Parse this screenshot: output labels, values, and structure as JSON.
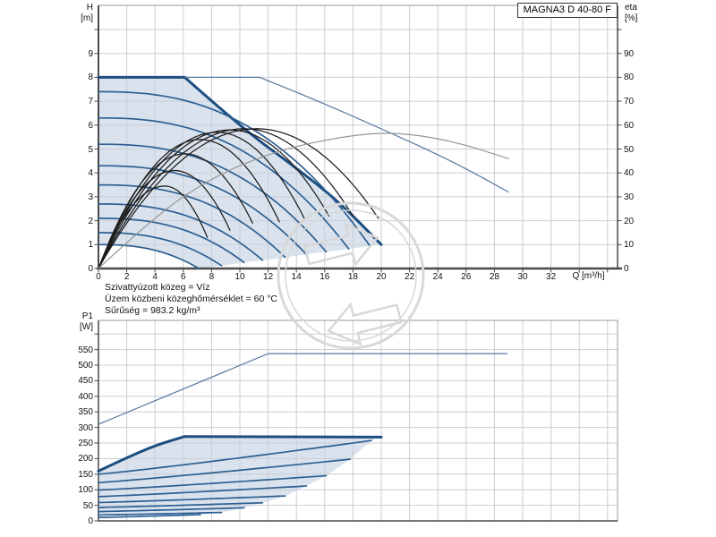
{
  "header": {
    "model_label": "MAGNA3 D 40-80 F"
  },
  "notes": [
    "Szivattyúzott közeg = Víz",
    "Üzem közbeni közeghőmérséklet = 60 °C",
    "Sűrűség = 983.2 kg/m³"
  ],
  "colors": {
    "curve_blue": "#2d5f92",
    "curve_blue_bold": "#1c4e80",
    "curve_blue_thin": "#56779e",
    "curve_black": "#1c1c1c",
    "curve_gray": "#979797",
    "envelope_fill": "#dae3ed",
    "grid": "#c9ced6",
    "axis": "#4a4a4a",
    "frame": "#999999",
    "watermark": "#d8d8d8"
  },
  "chart_data": [
    {
      "type": "line",
      "title": "MAGNA3 D 40-80 F",
      "xlabel": "Q [m³/h]",
      "ylabel_left_1": "H",
      "ylabel_left_2": "[m]",
      "ylabel_right_1": "eta",
      "ylabel_right_2": "[%]",
      "xlim": [
        0,
        36.7
      ],
      "ylim_left": [
        0,
        10
      ],
      "ylim_right": [
        0,
        100
      ],
      "x_ticks": [
        0,
        2,
        4,
        6,
        8,
        10,
        12,
        14,
        16,
        18,
        20,
        22,
        24,
        26,
        28,
        30,
        32
      ],
      "y_ticks_left": [
        0,
        1,
        2,
        3,
        4,
        5,
        6,
        7,
        8,
        9
      ],
      "y_ticks_right": [
        0,
        10,
        20,
        30,
        40,
        50,
        60,
        70,
        80,
        90
      ],
      "grid": "on",
      "envelope": [
        [
          0,
          1.0
        ],
        [
          2,
          0.96
        ],
        [
          3.55,
          0.82
        ],
        [
          5.3,
          0.51
        ],
        [
          6.4,
          0.23
        ],
        [
          7.1,
          0
        ],
        [
          8.7,
          0.12
        ],
        [
          10.3,
          0.25
        ],
        [
          11.6,
          0.35
        ],
        [
          13.2,
          0.47
        ],
        [
          14.7,
          0.59
        ],
        [
          16.1,
          0.7
        ],
        [
          17.7,
          0.82
        ],
        [
          19.2,
          0.94
        ],
        [
          20,
          1.0
        ],
        [
          17,
          2.8
        ],
        [
          14,
          4.2
        ],
        [
          10.1,
          5.9
        ],
        [
          6.1,
          8
        ],
        [
          0,
          8
        ]
      ],
      "series": [
        {
          "name": "qh-max-single-flat",
          "axis": "left",
          "style": "blue-bold",
          "draw": "line",
          "points": [
            [
              0,
              8
            ],
            [
              6.1,
              8
            ]
          ]
        },
        {
          "name": "qh-max-single-desc",
          "axis": "left",
          "style": "blue-bold",
          "draw": "smooth",
          "points": [
            [
              6.1,
              8
            ],
            [
              10.1,
              5.9
            ],
            [
              14,
              4.2
            ],
            [
              17,
              2.8
            ],
            [
              20,
              1.0
            ]
          ]
        },
        {
          "name": "qh-max-parallel-flat",
          "axis": "left",
          "style": "blue-thin",
          "draw": "line",
          "points": [
            [
              6.1,
              8
            ],
            [
              11.4,
              8
            ]
          ]
        },
        {
          "name": "qh-max-parallel-desc",
          "axis": "left",
          "style": "blue-thin",
          "draw": "smooth",
          "points": [
            [
              11.4,
              8
            ],
            [
              15,
              7.15
            ],
            [
              20,
              5.85
            ],
            [
              25,
              4.5
            ],
            [
              29,
              3.2
            ]
          ]
        },
        {
          "name": "speed-curve-1",
          "axis": "left",
          "style": "blue",
          "draw": "pump",
          "h0": 7.4,
          "qe": 19.2,
          "he": 0.94,
          "exp": 2.5
        },
        {
          "name": "speed-curve-2",
          "axis": "left",
          "style": "blue",
          "draw": "pump",
          "h0": 6.3,
          "qe": 17.7,
          "he": 0.82,
          "exp": 2.5
        },
        {
          "name": "speed-curve-3",
          "axis": "left",
          "style": "blue",
          "draw": "pump",
          "h0": 5.2,
          "qe": 16.1,
          "he": 0.7,
          "exp": 2.5
        },
        {
          "name": "speed-curve-4",
          "axis": "left",
          "style": "blue",
          "draw": "pump",
          "h0": 4.3,
          "qe": 14.7,
          "he": 0.59,
          "exp": 2.5
        },
        {
          "name": "speed-curve-5",
          "axis": "left",
          "style": "blue",
          "draw": "pump",
          "h0": 3.5,
          "qe": 13.2,
          "he": 0.47,
          "exp": 2.5
        },
        {
          "name": "speed-curve-6",
          "axis": "left",
          "style": "blue",
          "draw": "pump",
          "h0": 2.7,
          "qe": 11.6,
          "he": 0.35,
          "exp": 2.5
        },
        {
          "name": "speed-curve-7",
          "axis": "left",
          "style": "blue",
          "draw": "pump",
          "h0": 2.1,
          "qe": 10.3,
          "he": 0.25,
          "exp": 2.5
        },
        {
          "name": "speed-curve-8",
          "axis": "left",
          "style": "blue",
          "draw": "pump",
          "h0": 1.5,
          "qe": 8.7,
          "he": 0.12,
          "exp": 2.5
        },
        {
          "name": "speed-curve-9",
          "axis": "left",
          "style": "blue",
          "draw": "pump",
          "h0": 1.0,
          "qe": 7.1,
          "he": 0.0,
          "exp": 2.5
        },
        {
          "name": "eta-curve-1",
          "axis": "right",
          "style": "black",
          "draw": "hill",
          "qp": 4.7,
          "ep": 34.5,
          "qe": 7.7,
          "ee": 13
        },
        {
          "name": "eta-curve-2",
          "axis": "right",
          "style": "black",
          "draw": "hill",
          "qp": 5.4,
          "ep": 41,
          "qe": 9.3,
          "ee": 16
        },
        {
          "name": "eta-curve-3",
          "axis": "right",
          "style": "black",
          "draw": "hill",
          "qp": 6.1,
          "ep": 48,
          "qe": 10.9,
          "ee": 19
        },
        {
          "name": "eta-curve-4",
          "axis": "right",
          "style": "black",
          "draw": "hill",
          "qp": 7.2,
          "ep": 54,
          "qe": 12.8,
          "ee": 19.5
        },
        {
          "name": "eta-curve-5",
          "axis": "right",
          "style": "black",
          "draw": "hill",
          "qp": 8.4,
          "ep": 57,
          "qe": 14.6,
          "ee": 20.5
        },
        {
          "name": "eta-curve-6",
          "axis": "right",
          "style": "black",
          "draw": "hill",
          "qp": 9.3,
          "ep": 58,
          "qe": 16.3,
          "ee": 22
        },
        {
          "name": "eta-curve-7",
          "axis": "right",
          "style": "black",
          "draw": "hill",
          "qp": 10.3,
          "ep": 58.5,
          "qe": 18.0,
          "ee": 22
        },
        {
          "name": "eta-curve-8",
          "axis": "right",
          "style": "black",
          "draw": "hill",
          "qp": 11.2,
          "ep": 58.5,
          "qe": 19.8,
          "ee": 21
        },
        {
          "name": "eta-parallel",
          "axis": "right",
          "style": "gray",
          "draw": "smooth",
          "points": [
            [
              0,
              0
            ],
            [
              4,
              22
            ],
            [
              8,
              38
            ],
            [
              12,
              48
            ],
            [
              16,
              54
            ],
            [
              20.5,
              57.5
            ],
            [
              25,
              53.5
            ],
            [
              29,
              46
            ]
          ]
        }
      ]
    },
    {
      "type": "line",
      "title": "P1 power input",
      "xlabel": "",
      "ylabel_1": "P1",
      "ylabel_2": "[W]",
      "xlim": [
        0,
        36.7
      ],
      "ylim": [
        0,
        600
      ],
      "y_ticks": [
        0,
        50,
        100,
        150,
        200,
        250,
        300,
        350,
        400,
        450,
        500,
        550
      ],
      "grid": "on",
      "envelope": [
        [
          0,
          17
        ],
        [
          3.6,
          18.5
        ],
        [
          7.2,
          20
        ],
        [
          8.7,
          27
        ],
        [
          10.3,
          42
        ],
        [
          11.6,
          58
        ],
        [
          13.2,
          80
        ],
        [
          14.7,
          112
        ],
        [
          16.1,
          145
        ],
        [
          17.8,
          198
        ],
        [
          19.3,
          258
        ],
        [
          20,
          269
        ],
        [
          12,
          270
        ],
        [
          6.1,
          271
        ],
        [
          3,
          222
        ],
        [
          1.5,
          193
        ],
        [
          0,
          160
        ]
      ],
      "series": [
        {
          "name": "p1-max-parallel",
          "style": "blue-thin",
          "draw": "line",
          "points": [
            [
              0,
              310
            ],
            [
              12,
              537
            ],
            [
              28.9,
              537
            ]
          ]
        },
        {
          "name": "p1-max-single-rise",
          "style": "blue-bold",
          "draw": "smooth",
          "points": [
            [
              0,
              160
            ],
            [
              2,
              203
            ],
            [
              4,
              242
            ],
            [
              6.1,
              271
            ]
          ]
        },
        {
          "name": "p1-max-single-flat",
          "style": "blue-bold",
          "draw": "line",
          "points": [
            [
              6.1,
              271
            ],
            [
              12,
              270
            ],
            [
              20,
              269
            ]
          ]
        },
        {
          "name": "p1-curve-1",
          "style": "blue",
          "draw": "power",
          "p0": 150,
          "qe": 19.3,
          "pe": 258,
          "exp": 1.1
        },
        {
          "name": "p1-curve-2",
          "style": "blue",
          "draw": "power",
          "p0": 123,
          "qe": 17.8,
          "pe": 198,
          "exp": 1.1
        },
        {
          "name": "p1-curve-3",
          "style": "blue",
          "draw": "power",
          "p0": 99,
          "qe": 16.1,
          "pe": 145,
          "exp": 1.1
        },
        {
          "name": "p1-curve-4",
          "style": "blue",
          "draw": "power",
          "p0": 78,
          "qe": 14.7,
          "pe": 112,
          "exp": 1.1
        },
        {
          "name": "p1-curve-5",
          "style": "blue",
          "draw": "power",
          "p0": 59,
          "qe": 13.2,
          "pe": 80,
          "exp": 1.1
        },
        {
          "name": "p1-curve-6",
          "style": "blue",
          "draw": "power",
          "p0": 43,
          "qe": 11.6,
          "pe": 58,
          "exp": 1.1
        },
        {
          "name": "p1-curve-7",
          "style": "blue",
          "draw": "power",
          "p0": 30,
          "qe": 10.3,
          "pe": 42,
          "exp": 1.1
        },
        {
          "name": "p1-curve-8",
          "style": "blue",
          "draw": "power",
          "p0": 19,
          "qe": 8.7,
          "pe": 27,
          "exp": 1.1
        },
        {
          "name": "p1-curve-9",
          "style": "blue",
          "draw": "power",
          "p0": 11,
          "qe": 7.2,
          "pe": 20,
          "exp": 1.1
        }
      ]
    }
  ]
}
